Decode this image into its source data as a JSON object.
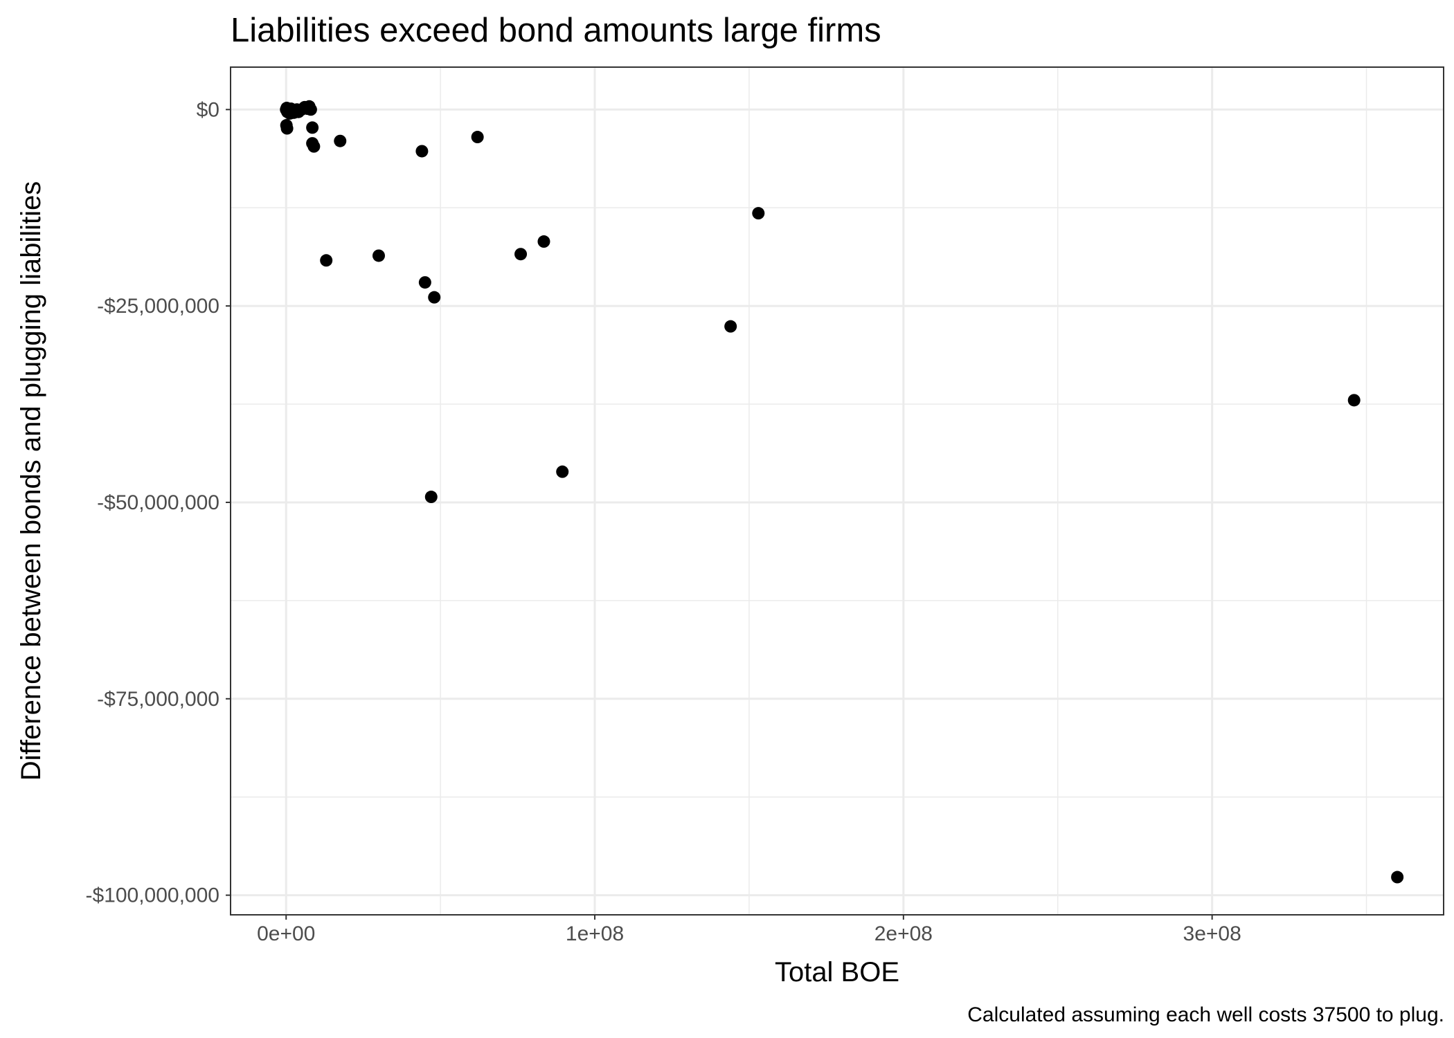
{
  "chart_data": {
    "type": "scatter",
    "title": "Liabilities exceed bond amounts large firms",
    "xlabel": "Total BOE",
    "ylabel": "Difference between bonds and plugging liabilities",
    "caption": "Calculated assuming each well costs 37500 to plug.",
    "xlim": [
      -18000000,
      375000000
    ],
    "ylim": [
      -102500000,
      5400000
    ],
    "x_ticks": [
      {
        "value": 0,
        "label": "0e+00"
      },
      {
        "value": 100000000,
        "label": "1e+08"
      },
      {
        "value": 200000000,
        "label": "2e+08"
      },
      {
        "value": 300000000,
        "label": "3e+08"
      }
    ],
    "y_ticks": [
      {
        "value": 0,
        "label": "$0"
      },
      {
        "value": -25000000,
        "label": "-$25,000,000"
      },
      {
        "value": -50000000,
        "label": "-$50,000,000"
      },
      {
        "value": -75000000,
        "label": "-$75,000,000"
      },
      {
        "value": -100000000,
        "label": "-$100,000,000"
      }
    ],
    "x_minor_ticks": [
      50000000,
      150000000,
      250000000,
      350000000
    ],
    "y_minor_ticks": [
      -12500000,
      -37500000,
      -62500000,
      -87500000
    ],
    "grid": true,
    "legend": "none",
    "point_color": "#000000",
    "points": [
      {
        "x": 0,
        "y": 0
      },
      {
        "x": 200000,
        "y": 200000
      },
      {
        "x": 400000,
        "y": -300000
      },
      {
        "x": 800000,
        "y": 0
      },
      {
        "x": 1200000,
        "y": -500000
      },
      {
        "x": 1600000,
        "y": 100000
      },
      {
        "x": 2000000,
        "y": -100000
      },
      {
        "x": 2500000,
        "y": -400000
      },
      {
        "x": 3000000,
        "y": -200000
      },
      {
        "x": 3500000,
        "y": 0
      },
      {
        "x": 4000000,
        "y": -300000
      },
      {
        "x": 5000000,
        "y": 0
      },
      {
        "x": 6000000,
        "y": 300000
      },
      {
        "x": 7000000,
        "y": 100000
      },
      {
        "x": 7500000,
        "y": 400000
      },
      {
        "x": 8000000,
        "y": 0
      },
      {
        "x": 100000,
        "y": -2000000
      },
      {
        "x": 300000,
        "y": -2400000
      },
      {
        "x": 8500000,
        "y": -2300000
      },
      {
        "x": 8500000,
        "y": -4300000
      },
      {
        "x": 9000000,
        "y": -4700000
      },
      {
        "x": 17500000,
        "y": -4000000
      },
      {
        "x": 44000000,
        "y": -5300000
      },
      {
        "x": 62000000,
        "y": -3500000
      },
      {
        "x": 153000000,
        "y": -13200000
      },
      {
        "x": 13000000,
        "y": -19200000
      },
      {
        "x": 30000000,
        "y": -18600000
      },
      {
        "x": 76000000,
        "y": -18400000
      },
      {
        "x": 83500000,
        "y": -16800000
      },
      {
        "x": 45000000,
        "y": -22000000
      },
      {
        "x": 48000000,
        "y": -23900000
      },
      {
        "x": 144000000,
        "y": -27600000
      },
      {
        "x": 346000000,
        "y": -37000000
      },
      {
        "x": 89500000,
        "y": -46100000
      },
      {
        "x": 47000000,
        "y": -49300000
      },
      {
        "x": 360000000,
        "y": -97700000
      }
    ]
  }
}
